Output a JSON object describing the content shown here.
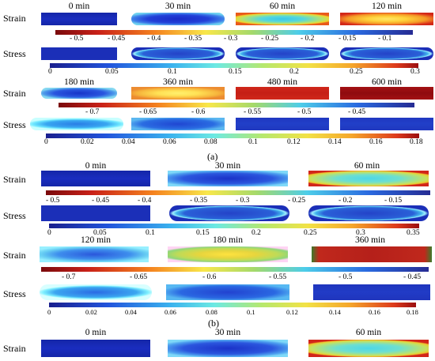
{
  "row_labels": {
    "strain": "Strain",
    "stress": "Stress"
  },
  "section_a": {
    "top_times": [
      "0 min",
      "30 min",
      "60 min",
      "120 min"
    ],
    "bottom_times": [
      "180 min",
      "360 min",
      "480 min",
      "600 min"
    ],
    "strain_bar_top_ticks": [
      "- 0.5",
      "- 0.45",
      "- 0.4",
      "- 0.35",
      "- 0.3",
      "- 0.25",
      "- 0.2",
      "- 0.15",
      "- 0.1"
    ],
    "stress_bar_top_ticks": [
      "0",
      "0.05",
      "0.1",
      "0.15",
      "0.2",
      "0.25",
      "0.3"
    ],
    "strain_bar_bottom_ticks": [
      "- 0.7",
      "- 0.65",
      "- 0.6",
      "- 0.55",
      "- 0.5",
      "- 0.45"
    ],
    "stress_bar_bottom_ticks": [
      "0",
      "0.02",
      "0.04",
      "0.06",
      "0.08",
      "0.1",
      "0.12",
      "0.14",
      "0.16",
      "0.18"
    ],
    "label": "(a)"
  },
  "section_b": {
    "top_times": [
      "0 min",
      "30 min",
      "60 min"
    ],
    "bottom_times": [
      "120 min",
      "180 min",
      "360 min"
    ],
    "strain_bar_top_ticks": [
      "- 0.5",
      "- 0.45",
      "- 0.4",
      "- 0.35",
      "- 0.3",
      "- 0.25",
      "- 0.2",
      "- 0.15"
    ],
    "stress_bar_top_ticks": [
      "0",
      "0.05",
      "0.1",
      "0.15",
      "0.2",
      "0.25",
      "0.3",
      "0.35"
    ],
    "strain_bar_bottom_ticks": [
      "- 0.7",
      "- 0.65",
      "- 0.6",
      "- 0.55",
      "- 0.5",
      "- 0.45"
    ],
    "stress_bar_bottom_ticks": [
      "0",
      "0.02",
      "0.04",
      "0.06",
      "0.08",
      "0.1",
      "0.12",
      "0.14",
      "0.16",
      "0.18"
    ],
    "label": "(b)"
  },
  "section_c": {
    "times": [
      "0 min",
      "30 min",
      "60 min"
    ]
  }
}
